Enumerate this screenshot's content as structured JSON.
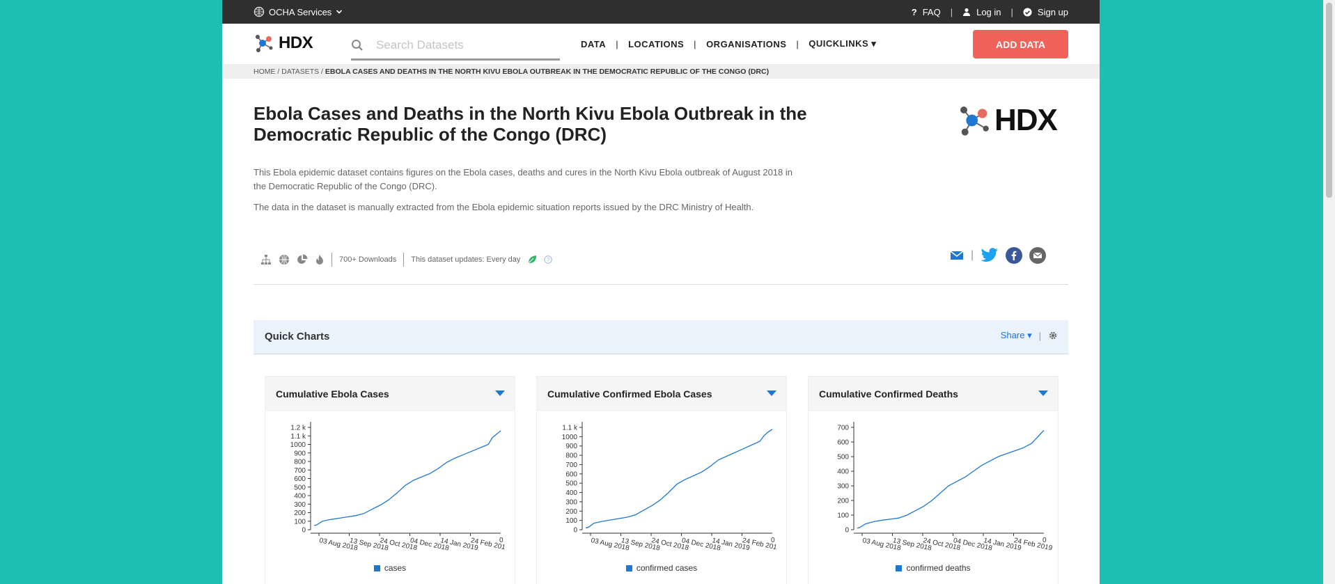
{
  "topbar": {
    "ocha_label": "OCHA Services",
    "faq": "FAQ",
    "login": "Log in",
    "signup": "Sign up",
    "sep": "|"
  },
  "nav": {
    "logo": "HDX",
    "search_placeholder": "Search Datasets",
    "items": [
      "DATA",
      "LOCATIONS",
      "ORGANISATIONS",
      "QUICKLINKS ▾"
    ],
    "add_data": "ADD DATA"
  },
  "breadcrumb": {
    "home": "HOME",
    "datasets": "DATASETS",
    "current": "EBOLA CASES AND DEATHS IN THE NORTH KIVU EBOLA OUTBREAK IN THE DEMOCRATIC REPUBLIC OF THE CONGO (DRC)"
  },
  "dataset": {
    "title": "Ebola Cases and Deaths in the North Kivu Ebola Outbreak in the Democratic Republic of the Congo (DRC)",
    "desc1": "This Ebola epidemic dataset contains figures on the Ebola cases, deaths and cures in the North Kivu Ebola outbreak of August 2018 in the Democratic Republic of the Congo (DRC).",
    "desc2": "The data in the dataset is manually extracted from the Ebola epidemic situation reports issued by the DRC Ministry of Health.",
    "downloads": "700+ Downloads",
    "updates": "This dataset updates: Every day"
  },
  "quick_charts": {
    "title": "Quick Charts",
    "share": "Share"
  },
  "colors": {
    "accent": "#1e78d2",
    "add_data": "#f0625a",
    "teal": "#1ebfb3"
  },
  "chart_data": [
    {
      "type": "line",
      "title": "Cumulative Ebola Cases",
      "x_ticks": [
        "03 Aug 2018",
        "13 Sep 2018",
        "24 Oct 2018",
        "04 Dec 2018",
        "14 Jan 2019",
        "24 Feb 201"
      ],
      "y_ticks": [
        "0",
        "100",
        "200",
        "300",
        "400",
        "500",
        "600",
        "700",
        "800",
        "900",
        "1000",
        "1.1 k",
        "1.2 k"
      ],
      "ylim": [
        0,
        1200
      ],
      "series": [
        {
          "name": "cases",
          "x": [
            0,
            3,
            10,
            20,
            30,
            40,
            50,
            60,
            70,
            80,
            90,
            100,
            110,
            120,
            130,
            140,
            150,
            160,
            170,
            180,
            190,
            200,
            210,
            215,
            220,
            225
          ],
          "y": [
            50,
            55,
            100,
            120,
            135,
            150,
            165,
            190,
            240,
            290,
            350,
            430,
            520,
            580,
            620,
            660,
            720,
            790,
            840,
            880,
            920,
            960,
            1000,
            1080,
            1120,
            1160
          ]
        }
      ]
    },
    {
      "type": "line",
      "title": "Cumulative Confirmed Ebola Cases",
      "x_ticks": [
        "03 Aug 2018",
        "13 Sep 2018",
        "24 Oct 2018",
        "04 Dec 2018",
        "14 Jan 2019",
        "24 Feb 201"
      ],
      "y_ticks": [
        "0",
        "100",
        "200",
        "300",
        "400",
        "500",
        "600",
        "700",
        "800",
        "900",
        "1000",
        "1.1 k"
      ],
      "ylim": [
        0,
        1100
      ],
      "series": [
        {
          "name": "confirmed cases",
          "x": [
            0,
            3,
            10,
            20,
            30,
            40,
            50,
            60,
            70,
            80,
            90,
            100,
            110,
            120,
            130,
            140,
            150,
            160,
            170,
            180,
            190,
            200,
            210,
            215,
            220,
            225
          ],
          "y": [
            20,
            25,
            70,
            90,
            105,
            120,
            135,
            160,
            210,
            260,
            320,
            400,
            490,
            540,
            580,
            620,
            680,
            750,
            790,
            830,
            870,
            910,
            950,
            1010,
            1050,
            1080
          ]
        }
      ]
    },
    {
      "type": "line",
      "title": "Cumulative Confirmed Deaths",
      "x_ticks": [
        "03 Aug 2018",
        "13 Sep 2018",
        "24 Oct 2018",
        "04 Dec 2018",
        "14 Jan 2019",
        "24 Feb 2019"
      ],
      "y_ticks": [
        "0",
        "100",
        "200",
        "300",
        "400",
        "500",
        "600",
        "700"
      ],
      "ylim": [
        0,
        700
      ],
      "series": [
        {
          "name": "confirmed deaths",
          "x": [
            0,
            3,
            10,
            20,
            30,
            40,
            50,
            60,
            70,
            80,
            90,
            100,
            110,
            120,
            130,
            140,
            150,
            160,
            170,
            180,
            190,
            200,
            210,
            215,
            220,
            225
          ],
          "y": [
            10,
            15,
            40,
            55,
            65,
            72,
            80,
            100,
            130,
            160,
            200,
            250,
            300,
            330,
            360,
            400,
            440,
            470,
            500,
            520,
            540,
            560,
            590,
            620,
            650,
            680
          ]
        }
      ]
    }
  ]
}
